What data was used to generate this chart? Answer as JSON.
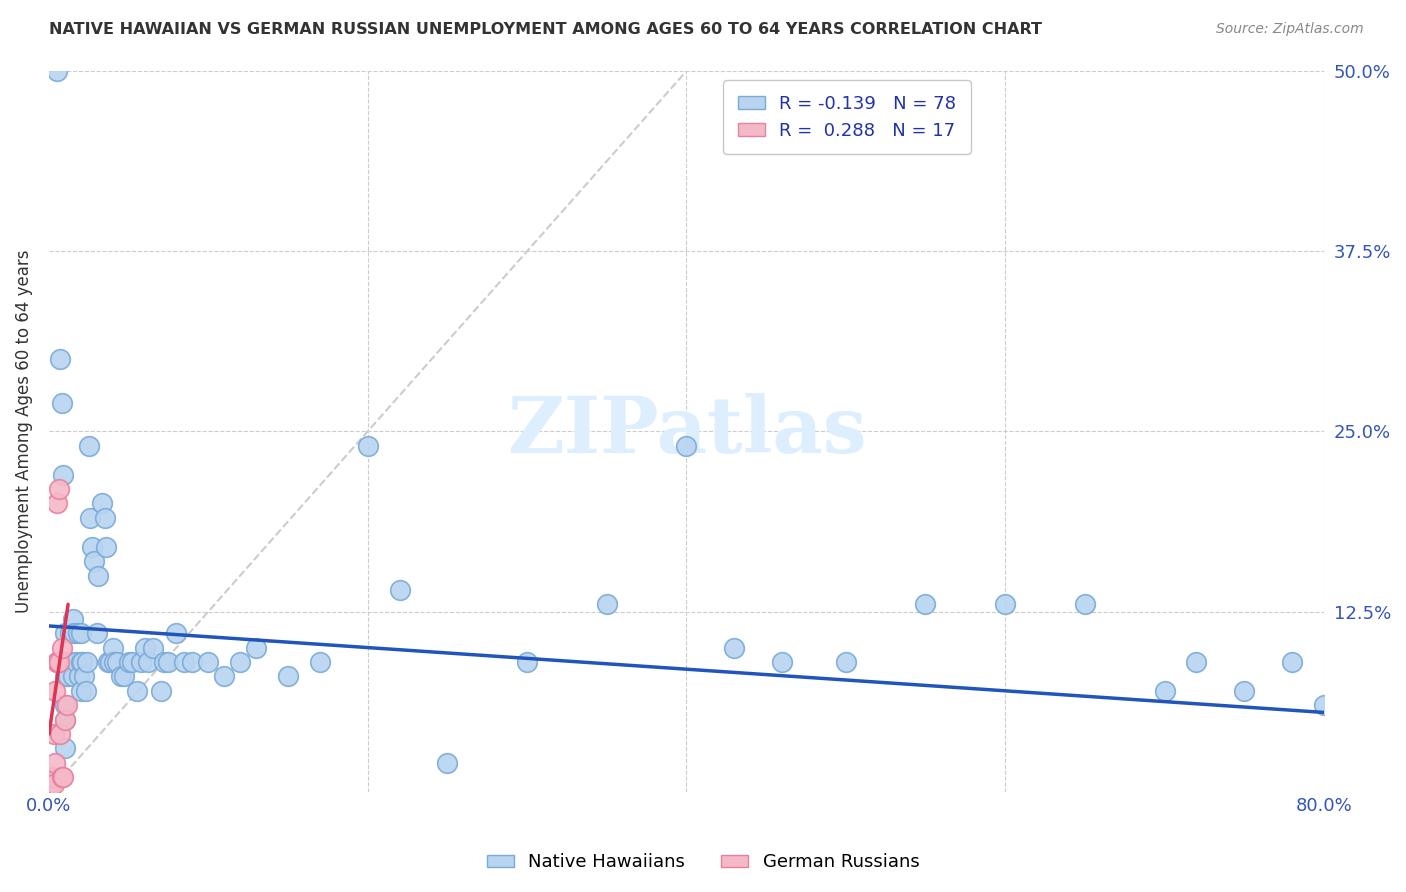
{
  "title": "NATIVE HAWAIIAN VS GERMAN RUSSIAN UNEMPLOYMENT AMONG AGES 60 TO 64 YEARS CORRELATION CHART",
  "source": "Source: ZipAtlas.com",
  "ylabel": "Unemployment Among Ages 60 to 64 years",
  "xlim": [
    0.0,
    0.8
  ],
  "ylim": [
    0.0,
    0.5
  ],
  "xtick_positions": [
    0.0,
    0.2,
    0.4,
    0.6,
    0.8
  ],
  "xtick_labels": [
    "0.0%",
    "",
    "",
    "",
    "80.0%"
  ],
  "ytick_positions": [
    0.125,
    0.25,
    0.375,
    0.5
  ],
  "ytick_labels": [
    "12.5%",
    "25.0%",
    "37.5%",
    "50.0%"
  ],
  "grid_color": "#cccccc",
  "native_hawaiian_face": "#b8d4f0",
  "native_hawaiian_edge": "#7aaad8",
  "german_russian_face": "#f5b8c8",
  "german_russian_edge": "#e8809a",
  "trend_nh_color": "#2255bb",
  "trend_gr_color": "#dd3355",
  "ref_line_color": "#cccccc",
  "tick_label_color": "#3355bb",
  "title_color": "#333333",
  "ylabel_color": "#333333",
  "source_color": "#888888",
  "watermark_color": "#ddeeff",
  "r_nh": -0.139,
  "n_nh": 78,
  "r_gr": 0.288,
  "n_gr": 17,
  "nh_x": [
    0.005,
    0.007,
    0.008,
    0.009,
    0.01,
    0.01,
    0.01,
    0.01,
    0.01,
    0.01,
    0.012,
    0.013,
    0.014,
    0.015,
    0.015,
    0.016,
    0.017,
    0.018,
    0.019,
    0.02,
    0.02,
    0.02,
    0.021,
    0.022,
    0.023,
    0.024,
    0.025,
    0.026,
    0.027,
    0.028,
    0.03,
    0.031,
    0.033,
    0.035,
    0.036,
    0.037,
    0.038,
    0.04,
    0.041,
    0.043,
    0.045,
    0.047,
    0.05,
    0.052,
    0.055,
    0.058,
    0.06,
    0.062,
    0.065,
    0.07,
    0.072,
    0.075,
    0.08,
    0.085,
    0.09,
    0.1,
    0.11,
    0.12,
    0.13,
    0.15,
    0.17,
    0.2,
    0.22,
    0.25,
    0.3,
    0.35,
    0.4,
    0.43,
    0.46,
    0.5,
    0.55,
    0.6,
    0.65,
    0.7,
    0.72,
    0.75,
    0.78,
    0.8
  ],
  "nh_y": [
    0.5,
    0.3,
    0.27,
    0.22,
    0.11,
    0.09,
    0.08,
    0.06,
    0.05,
    0.03,
    0.08,
    0.11,
    0.09,
    0.12,
    0.08,
    0.11,
    0.09,
    0.11,
    0.08,
    0.11,
    0.09,
    0.07,
    0.09,
    0.08,
    0.07,
    0.09,
    0.24,
    0.19,
    0.17,
    0.16,
    0.11,
    0.15,
    0.2,
    0.19,
    0.17,
    0.09,
    0.09,
    0.1,
    0.09,
    0.09,
    0.08,
    0.08,
    0.09,
    0.09,
    0.07,
    0.09,
    0.1,
    0.09,
    0.1,
    0.07,
    0.09,
    0.09,
    0.11,
    0.09,
    0.09,
    0.09,
    0.08,
    0.09,
    0.1,
    0.08,
    0.09,
    0.24,
    0.14,
    0.02,
    0.09,
    0.13,
    0.24,
    0.1,
    0.09,
    0.09,
    0.13,
    0.13,
    0.13,
    0.07,
    0.09,
    0.07,
    0.09,
    0.06
  ],
  "gr_x": [
    0.001,
    0.002,
    0.003,
    0.003,
    0.004,
    0.004,
    0.005,
    0.005,
    0.005,
    0.006,
    0.006,
    0.007,
    0.008,
    0.008,
    0.009,
    0.01,
    0.011
  ],
  "gr_y": [
    0.005,
    0.01,
    0.005,
    0.04,
    0.02,
    0.07,
    0.09,
    0.09,
    0.2,
    0.09,
    0.21,
    0.04,
    0.1,
    0.01,
    0.01,
    0.05,
    0.06
  ],
  "nh_trend_x": [
    0.0,
    0.8
  ],
  "nh_trend_y": [
    0.115,
    0.055
  ],
  "gr_trend_x": [
    0.0,
    0.012
  ],
  "gr_trend_y": [
    0.04,
    0.13
  ],
  "ref_line_x": [
    0.0,
    0.4
  ],
  "ref_line_y": [
    0.0,
    0.5
  ]
}
